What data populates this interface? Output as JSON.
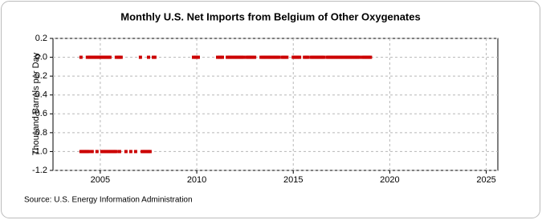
{
  "chart_data": {
    "type": "scatter",
    "title": "Monthly U.S. Net Imports from Belgium of Other Oxygenates",
    "y_label": "Thousand Barrels per Day",
    "source": "Source: U.S. Energy Information Administration",
    "xlim": [
      2002.55,
      2025.6
    ],
    "xticks": [
      2005,
      2010,
      2015,
      2020,
      2025
    ],
    "ylim": [
      -1.2,
      0.2
    ],
    "yticks": [
      0.2,
      {
        "value": 0,
        "label": "0.0"
      },
      -0.2,
      -0.4,
      -0.6,
      -0.8,
      {
        "value": -1,
        "label": "-1.0"
      },
      -1.2
    ],
    "grid": true,
    "series": [
      {
        "color": "#cc0000",
        "x": [
          2004,
          2004.33,
          2004.42,
          2004.5,
          2004.58,
          2004.67,
          2004.75,
          2004.83,
          2004.92,
          2005,
          2005.08,
          2005.17,
          2005.25,
          2005.33,
          2005.42,
          2005.5,
          2005.83,
          2005.92,
          2006,
          2006.08,
          2007.08,
          2007.5,
          2007.75,
          2007.83,
          2009.83,
          2009.92,
          2010,
          2010.08,
          2011.08,
          2011.17,
          2011.25,
          2011.33,
          2011.58,
          2011.67,
          2011.75,
          2011.83,
          2011.92,
          2012,
          2012.08,
          2012.17,
          2012.25,
          2012.33,
          2012.42,
          2012.58,
          2012.67,
          2012.75,
          2012.83,
          2012.92,
          2013,
          2013.33,
          2013.42,
          2013.5,
          2013.58,
          2013.67,
          2013.75,
          2013.83,
          2013.92,
          2014,
          2014.08,
          2014.17,
          2014.25,
          2014.42,
          2014.5,
          2014.58,
          2014.67,
          2015,
          2015.08,
          2015.17,
          2015.25,
          2015.33,
          2015.58,
          2015.67,
          2015.75,
          2015.92,
          2016,
          2016.08,
          2016.17,
          2016.25,
          2016.33,
          2016.42,
          2016.5,
          2016.58,
          2016.75,
          2016.83,
          2016.92,
          2017,
          2017.08,
          2017.17,
          2017.25,
          2017.33,
          2017.42,
          2017.5,
          2017.58,
          2017.67,
          2017.75,
          2017.83,
          2017.92,
          2018,
          2018.08,
          2018.17,
          2018.25,
          2018.33,
          2018.42,
          2018.58,
          2018.67,
          2018.75,
          2018.83,
          2018.92,
          2019
        ],
        "values": [
          0,
          0,
          0,
          0,
          0,
          0,
          0,
          0,
          0,
          0,
          0,
          0,
          0,
          0,
          0,
          0,
          0,
          0,
          0,
          0,
          0,
          0,
          0,
          0,
          0,
          0,
          0,
          0,
          0,
          0,
          0,
          0,
          0,
          0,
          0,
          0,
          0,
          0,
          0,
          0,
          0,
          0,
          0,
          0,
          0,
          0,
          0,
          0,
          0,
          0,
          0,
          0,
          0,
          0,
          0,
          0,
          0,
          0,
          0,
          0,
          0,
          0,
          0,
          0,
          0,
          0,
          0,
          0,
          0,
          0,
          0,
          0,
          0,
          0,
          0,
          0,
          0,
          0,
          0,
          0,
          0,
          0,
          0,
          0,
          0,
          0,
          0,
          0,
          0,
          0,
          0,
          0,
          0,
          0,
          0,
          0,
          0,
          0,
          0,
          0,
          0,
          0,
          0,
          0,
          0,
          0,
          0,
          0,
          0
        ]
      },
      {
        "color": "#cc0000",
        "x": [
          2004,
          2004.08,
          2004.17,
          2004.25,
          2004.33,
          2004.42,
          2004.58,
          2004.83,
          2005.08,
          2005.17,
          2005.25,
          2005.33,
          2005.42,
          2005.5,
          2005.58,
          2005.67,
          2005.75,
          2005.83,
          2006,
          2006.33,
          2006.58,
          2006.83,
          2007.17,
          2007.25,
          2007.33,
          2007.42,
          2007.5,
          2007.58
        ],
        "values": [
          -1,
          -1,
          -1,
          -1,
          -1,
          -1,
          -1,
          -1,
          -1,
          -1,
          -1,
          -1,
          -1,
          -1,
          -1,
          -1,
          -1,
          -1,
          -1,
          -1,
          -1,
          -1,
          -1,
          -1,
          -1,
          -1,
          -1,
          -1
        ]
      }
    ]
  }
}
